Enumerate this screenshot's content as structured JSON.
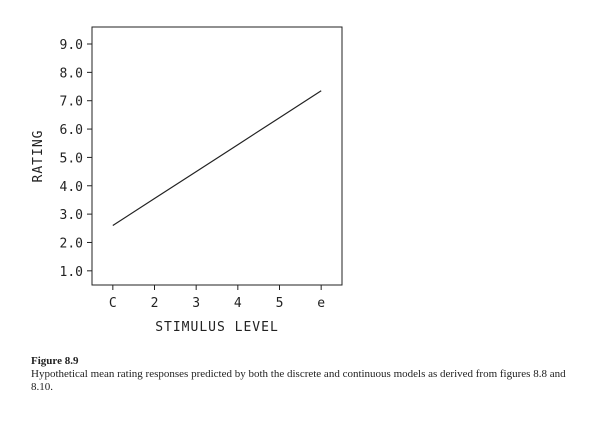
{
  "chart_data": {
    "type": "line",
    "x_tick_labels": [
      "C",
      "2",
      "3",
      "4",
      "5",
      "e"
    ],
    "x": [
      1,
      2,
      3,
      4,
      5,
      6
    ],
    "series": [
      {
        "values": [
          2.6,
          3.55,
          4.5,
          5.45,
          6.4,
          7.35
        ]
      }
    ],
    "y_ticks": [
      1.0,
      2.0,
      3.0,
      4.0,
      5.0,
      6.0,
      7.0,
      8.0,
      9.0
    ],
    "y_tick_labels": [
      "1.0",
      "2.0",
      "3.0",
      "4.0",
      "5.0",
      "6.0",
      "7.0",
      "8.0",
      "9.0"
    ],
    "xlabel": "STIMULUS LEVEL",
    "ylabel": "RATING",
    "xlim": [
      0.5,
      6.5
    ],
    "ylim": [
      0.5,
      9.6
    ],
    "grid": false,
    "line_color": "#222222"
  },
  "caption": {
    "label": "Figure 8.9",
    "text": "Hypothetical mean rating responses predicted by both the discrete and continuous models as derived from figures 8.8 and 8.10."
  }
}
